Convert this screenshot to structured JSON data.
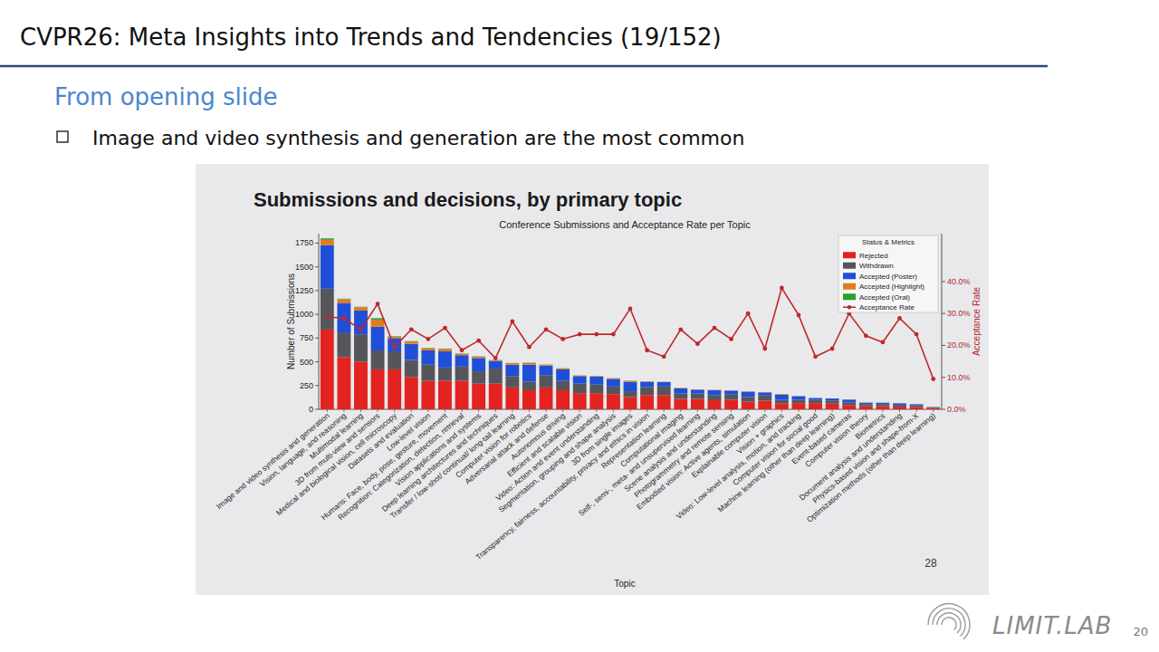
{
  "slide": {
    "title": "CVPR26: Meta Insights into Trends and Tendencies (19/152)",
    "subtitle": "From opening slide",
    "bullet": "Image and video synthesis and generation are the most common",
    "photo_page_number": "28",
    "brand": "LIMIT.LAB",
    "page_number": "20"
  },
  "chart_data": {
    "type": "bar",
    "stacked": true,
    "grid": false,
    "legend": "top-right",
    "title": "Submissions and decisions, by primary topic",
    "subtitle": "Conference Submissions and Acceptance Rate per Topic",
    "x_label": "Topic",
    "y_label": "Number of Submissions",
    "y2_label": "Acceptance Rate",
    "legend_title": "Status & Metrics",
    "categories": [
      "Image and video synthesis and generation",
      "Vision, language, and reasoning",
      "Multimodal learning",
      "3D from multi-view and sensors",
      "Medical and biological vision, cell microscopy",
      "Datasets and evaluation",
      "Low-level vision",
      "Humans: Face, body, pose, gesture, movement",
      "Recognition: Categorization, detection, retrieval",
      "Vision applications and systems",
      "Deep learning architectures and techniques",
      "Transfer / low-shot/ continual/ long-tail learning",
      "Computer vision for robotics",
      "Adversarial attack and defense",
      "Autonomous driving",
      "Efficient and scalable vision",
      "Video: Action and event understanding",
      "Segmentation, grouping and shape analysis",
      "3D from single images",
      "Transparency, fairness, accountability, privacy and ethics in vision",
      "Representation learning",
      "Computational imaging",
      "Self-, semi-, meta- and unsupervised learning",
      "Scene analysis and understanding",
      "Photogrammetry and remote sensing",
      "Embodied vision: Active agents, simulation",
      "Explainable computer vision",
      "Vision + graphics",
      "Video: Low-level analysis, motion, and tracking",
      "Computer vision for social good",
      "Machine learning (other than deep learning)",
      "Event-based cameras",
      "Computer vision theory",
      "Biometrics",
      "Document analysis and understanding",
      "Physics-based vision and shape-from-X",
      "Optimization methods (other than deep learning)"
    ],
    "ylim": [
      0,
      1850
    ],
    "yticks": [
      0,
      250,
      500,
      750,
      1000,
      1250,
      1500,
      1750
    ],
    "y2lim": [
      0,
      55
    ],
    "y2ticks": [
      {
        "value": 0,
        "label": "0.0%"
      },
      {
        "value": 10,
        "label": "10.0%"
      },
      {
        "value": 20,
        "label": "20.0%"
      },
      {
        "value": 30,
        "label": "30.0%"
      },
      {
        "value": 40,
        "label": "40.0%"
      }
    ],
    "series": [
      {
        "name": "Rejected",
        "type": "bar",
        "color": "#e2231f",
        "values": [
          840,
          550,
          500,
          420,
          420,
          340,
          300,
          300,
          300,
          270,
          270,
          230,
          200,
          230,
          200,
          170,
          170,
          160,
          130,
          150,
          150,
          110,
          110,
          95,
          100,
          80,
          90,
          60,
          65,
          65,
          60,
          45,
          35,
          35,
          28,
          26,
          15
        ]
      },
      {
        "name": "Withdrawn",
        "type": "bar",
        "color": "#55565c",
        "values": [
          430,
          260,
          290,
          200,
          190,
          180,
          170,
          140,
          150,
          130,
          160,
          120,
          90,
          130,
          100,
          100,
          90,
          80,
          60,
          85,
          90,
          55,
          55,
          55,
          55,
          50,
          55,
          40,
          35,
          35,
          33,
          28,
          20,
          20,
          18,
          16,
          8
        ]
      },
      {
        "name": "Accepted (Poster)",
        "type": "bar",
        "color": "#1f4fd8",
        "values": [
          460,
          310,
          250,
          250,
          140,
          170,
          150,
          170,
          120,
          140,
          80,
          120,
          180,
          100,
          120,
          80,
          85,
          80,
          100,
          55,
          47,
          55,
          42,
          50,
          42,
          55,
          33,
          55,
          38,
          19,
          21,
          29,
          15,
          14,
          17,
          12,
          2
        ]
      },
      {
        "name": "Accepted (Highlight)",
        "type": "bar",
        "color": "#e07b1f",
        "values": [
          55,
          40,
          35,
          75,
          15,
          25,
          25,
          25,
          15,
          15,
          8,
          15,
          18,
          10,
          10,
          6,
          5,
          8,
          10,
          4,
          3,
          5,
          3,
          4,
          3,
          4,
          2,
          5,
          3,
          1,
          1,
          2,
          1,
          1,
          1,
          1,
          0
        ]
      },
      {
        "name": "Accepted (Oral)",
        "type": "bar",
        "color": "#2ca02c",
        "values": [
          15,
          5,
          5,
          15,
          5,
          3,
          3,
          5,
          3,
          3,
          2,
          3,
          3,
          2,
          2,
          1,
          1,
          1,
          2,
          1,
          0,
          1,
          0,
          1,
          0,
          1,
          0,
          1,
          0,
          0,
          0,
          1,
          0,
          0,
          0,
          0,
          0
        ]
      },
      {
        "name": "Acceptance Rate",
        "type": "line",
        "axis": "y2",
        "color": "#c0282a",
        "marker": "circle",
        "line_style": "solid",
        "values": [
          29,
          28.5,
          25,
          33,
          19.5,
          25,
          22,
          25.5,
          18.5,
          21.5,
          16,
          27.5,
          19.5,
          25,
          22,
          23.5,
          23.5,
          23.5,
          31.5,
          18.5,
          16.5,
          25,
          20.5,
          25.5,
          22,
          30,
          19,
          38,
          29.5,
          16.5,
          19,
          30,
          23,
          21,
          28.5,
          23.5,
          9.5
        ]
      }
    ]
  }
}
